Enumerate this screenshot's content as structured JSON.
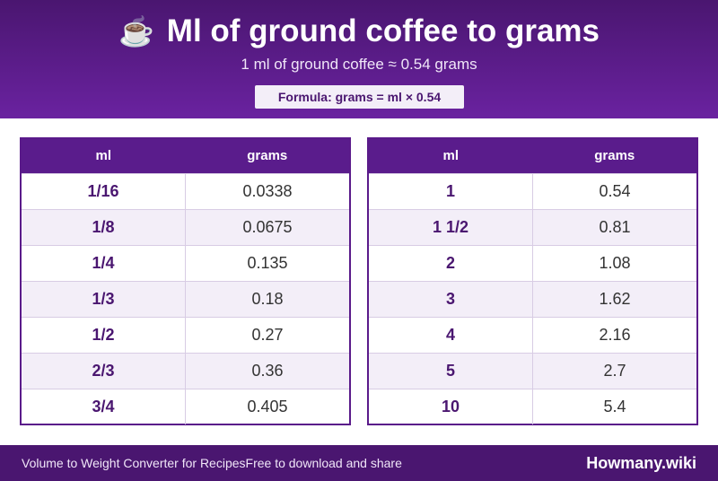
{
  "header": {
    "icon": "coffee-cup-icon",
    "icon_glyph": "☕",
    "title": "Ml of ground coffee to grams",
    "subtitle": "1 ml of ground coffee ≈ 0.54 grams",
    "formula": "Formula: grams = ml × 0.54"
  },
  "columns": {
    "ml": "ml",
    "grams": "grams"
  },
  "left_table": [
    {
      "ml": "1/16",
      "grams": "0.0338"
    },
    {
      "ml": "1/8",
      "grams": "0.0675"
    },
    {
      "ml": "1/4",
      "grams": "0.135"
    },
    {
      "ml": "1/3",
      "grams": "0.18"
    },
    {
      "ml": "1/2",
      "grams": "0.27"
    },
    {
      "ml": "2/3",
      "grams": "0.36"
    },
    {
      "ml": "3/4",
      "grams": "0.405"
    }
  ],
  "right_table": [
    {
      "ml": "1",
      "grams": "0.54"
    },
    {
      "ml": "1 1/2",
      "grams": "0.81"
    },
    {
      "ml": "2",
      "grams": "1.08"
    },
    {
      "ml": "3",
      "grams": "1.62"
    },
    {
      "ml": "4",
      "grams": "2.16"
    },
    {
      "ml": "5",
      "grams": "2.7"
    },
    {
      "ml": "10",
      "grams": "5.4"
    }
  ],
  "footer": {
    "left_text": "Volume to Weight Converter for Recipes",
    "middle_text": "Free to download and share",
    "brand": "Howmany.wiki"
  },
  "colors": {
    "primary": "#5a1c8c",
    "header_dark": "#4a1670",
    "alt_row": "#f3eef8"
  }
}
